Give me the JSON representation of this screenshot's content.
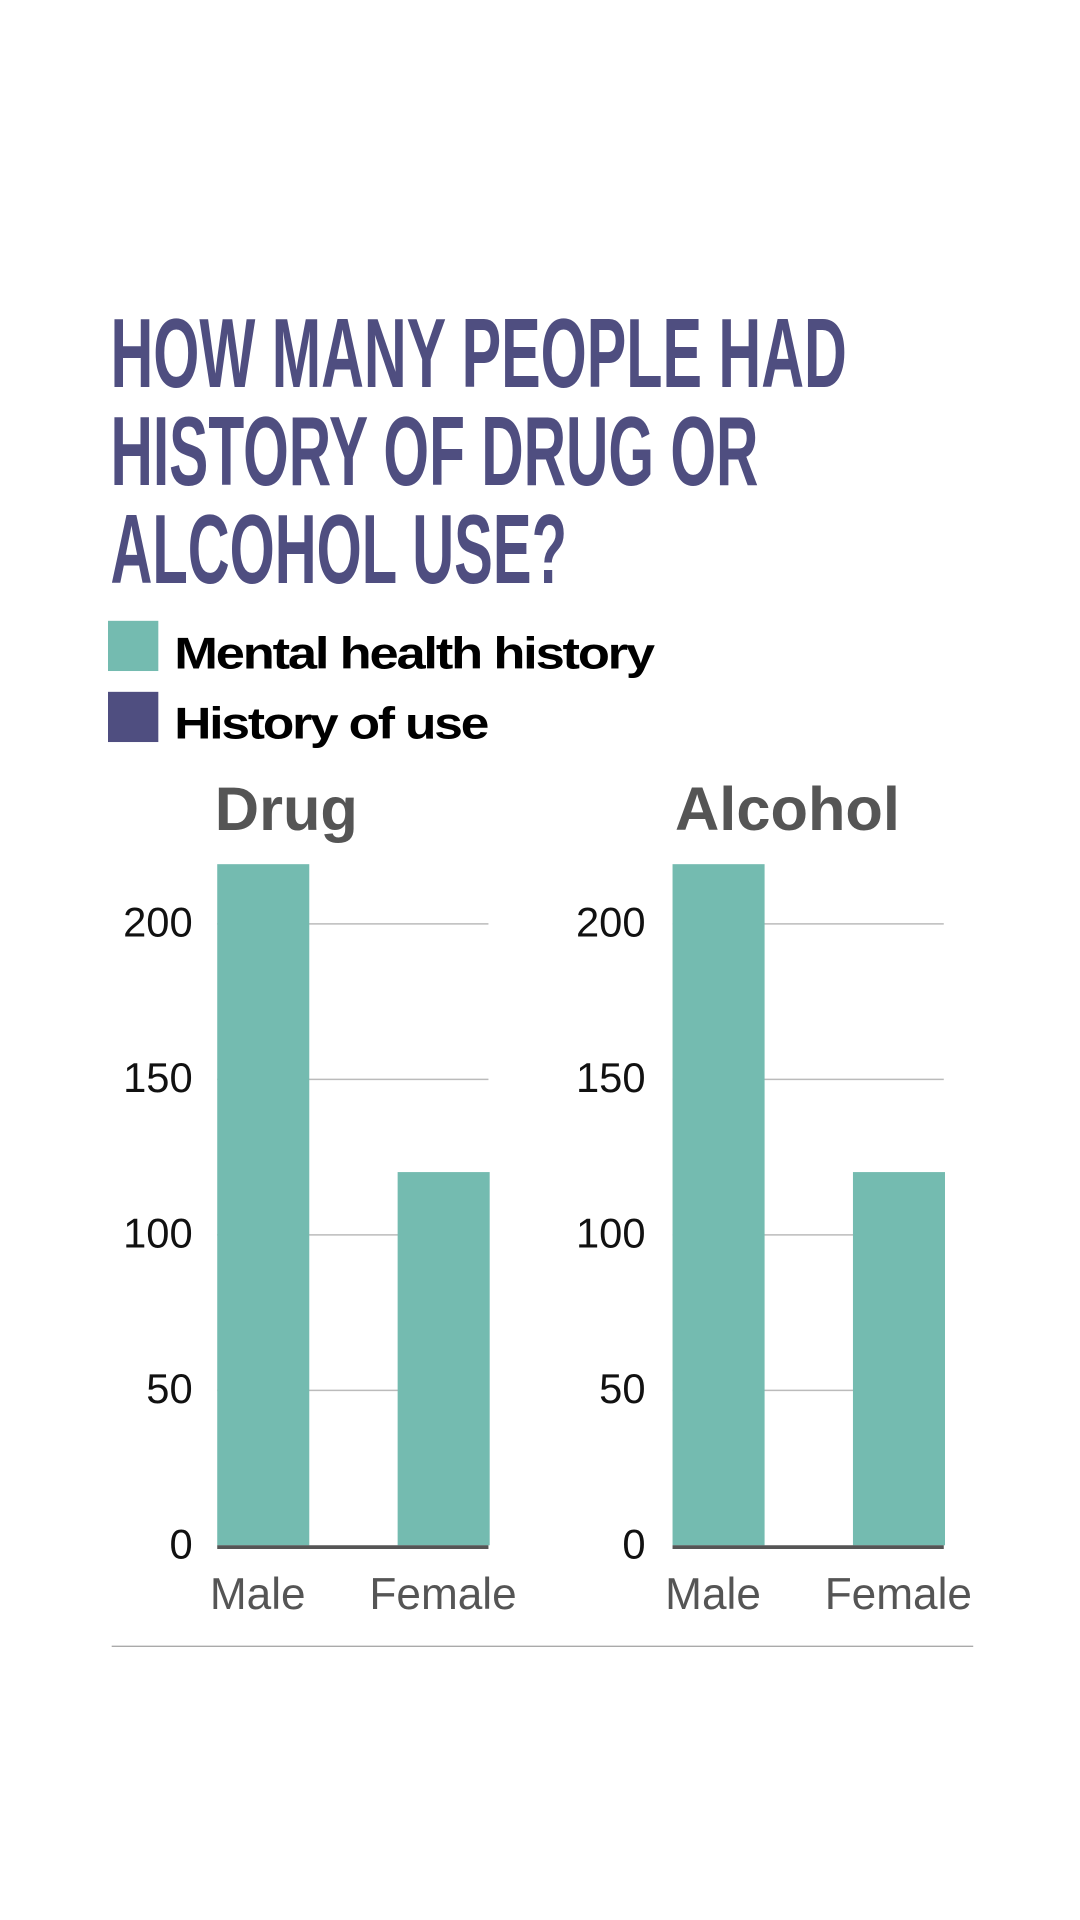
{
  "title_lines": [
    "HOW MANY PEOPLE HAD",
    "HISTORY OF DRUG OR",
    "ALCOHOL USE?"
  ],
  "legend": [
    {
      "label": "Mental health history",
      "color": "#74bbb0"
    },
    {
      "label": "History of use",
      "color": "#4f4e80"
    }
  ],
  "chart_data": [
    {
      "type": "bar",
      "title": "Drug",
      "categories": [
        "Male",
        "Female"
      ],
      "series": [
        {
          "name": "Mental health history",
          "values": [
            219,
            120
          ]
        }
      ],
      "ylim": [
        0,
        200
      ],
      "yticks": [
        "0",
        "50",
        "100",
        "150",
        "200"
      ],
      "grid": true
    },
    {
      "type": "bar",
      "title": "Alcohol",
      "categories": [
        "Male",
        "Female"
      ],
      "series": [
        {
          "name": "Mental health history",
          "values": [
            219,
            120
          ]
        }
      ],
      "ylim": [
        0,
        200
      ],
      "yticks": [
        "0",
        "50",
        "100",
        "150",
        "200"
      ],
      "grid": true
    }
  ]
}
